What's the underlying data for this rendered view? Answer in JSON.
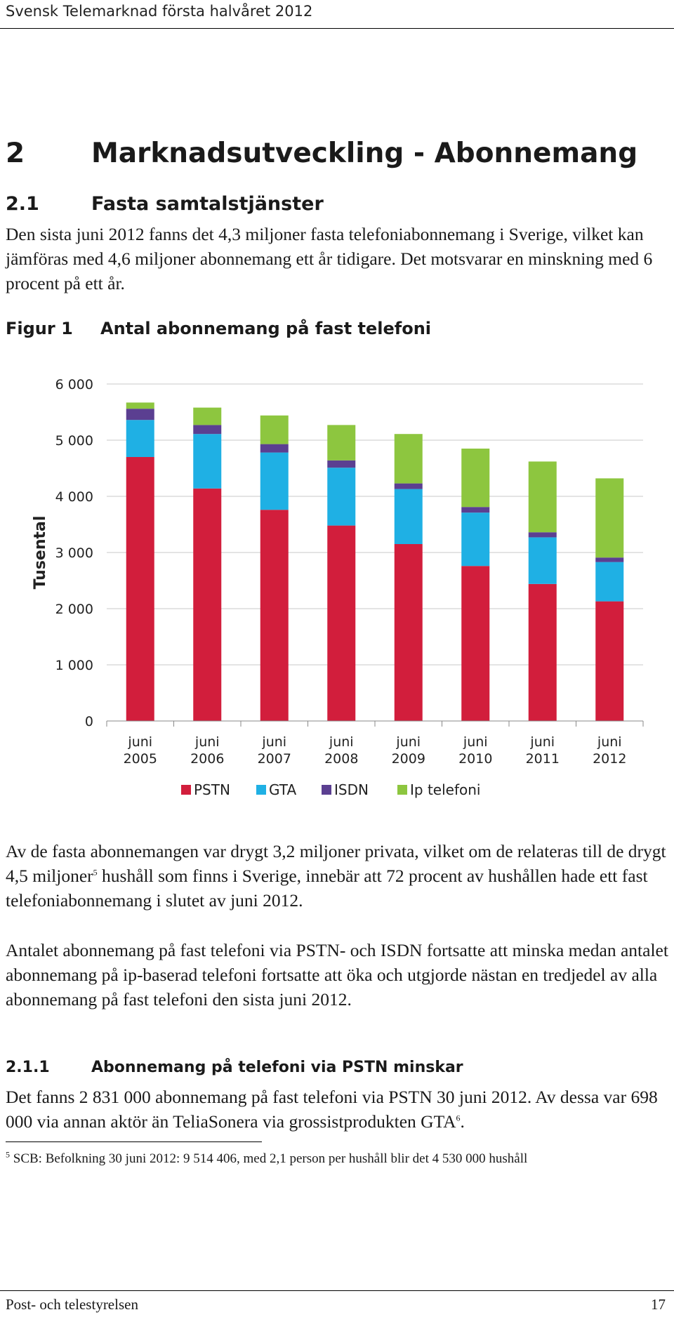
{
  "header": {
    "title": "Svensk Telemarknad första halvåret 2012"
  },
  "section": {
    "number": "2",
    "title": "Marknadsutveckling - Abonnemang"
  },
  "subsection": {
    "number": "2.1",
    "title": "Fasta samtalstjänster",
    "para1": "Den sista juni 2012 fanns det 4,3 miljoner fasta telefoniabonnemang i Sverige, vilket kan jämföras med 4,6 miljoner abonnemang ett år tidigare. Det motsvarar en minskning med 6 procent på ett år."
  },
  "figure": {
    "label": "Figur 1",
    "title": "Antal abonnemang på fast telefoni"
  },
  "chart_data": {
    "type": "bar",
    "stacked": true,
    "title": "Antal abonnemang på fast telefoni",
    "ylabel": "Tusental",
    "xlabel": "",
    "ylim": [
      0,
      6000
    ],
    "yticks": [
      "0",
      "1 000",
      "2 000",
      "3 000",
      "4 000",
      "5 000",
      "6 000"
    ],
    "ytick_values": [
      0,
      1000,
      2000,
      3000,
      4000,
      5000,
      6000
    ],
    "categories": [
      [
        "juni",
        "2005"
      ],
      [
        "juni",
        "2006"
      ],
      [
        "juni",
        "2007"
      ],
      [
        "juni",
        "2008"
      ],
      [
        "juni",
        "2009"
      ],
      [
        "juni",
        "2010"
      ],
      [
        "juni",
        "2011"
      ],
      [
        "juni",
        "2012"
      ]
    ],
    "legend_position": "bottom",
    "series": [
      {
        "name": "PSTN",
        "color": "#d21e3c",
        "values": [
          4700,
          4140,
          3760,
          3480,
          3150,
          2760,
          2440,
          2130
        ]
      },
      {
        "name": "GTA",
        "color": "#1fb0e4",
        "values": [
          660,
          970,
          1020,
          1030,
          980,
          950,
          830,
          700
        ]
      },
      {
        "name": "ISDN",
        "color": "#5b3f91",
        "values": [
          200,
          160,
          150,
          130,
          100,
          100,
          90,
          80
        ]
      },
      {
        "name": "Ip telefoni",
        "color": "#8dc63f",
        "values": [
          110,
          310,
          510,
          630,
          880,
          1040,
          1260,
          1410
        ]
      }
    ]
  },
  "body": {
    "para2_a": "Av de fasta abonnemangen var drygt 3,2 miljoner privata, vilket om de relateras till de drygt 4,5 miljoner",
    "para2_ref": "5",
    "para2_b": " hushåll som finns i Sverige, innebär att 72 procent av hushållen hade ett fast telefoniabonnemang i slutet av juni 2012.",
    "para3": "Antalet abonnemang på fast telefoni via PSTN- och ISDN fortsatte att minska medan antalet abonnemang på ip-baserad telefoni fortsatte att öka och utgjorde nästan en tredjedel av alla abonnemang på fast telefoni den sista juni 2012."
  },
  "subsubsection": {
    "number": "2.1.1",
    "title": "Abonnemang på telefoni via PSTN minskar",
    "para_a": "Det fanns 2 831 000 abonnemang på fast telefoni via PSTN 30 juni 2012. Av dessa var 698 000 via annan aktör än TeliaSonera via grossistprodukten GTA",
    "para_ref": "6",
    "para_b": "."
  },
  "footnote": {
    "ref": "5",
    "text": " SCB: Befolkning 30 juni 2012: 9 514 406, med 2,1 person per hushåll blir det 4 530 000 hushåll"
  },
  "footer": {
    "left": "Post- och telestyrelsen",
    "right": "17"
  }
}
